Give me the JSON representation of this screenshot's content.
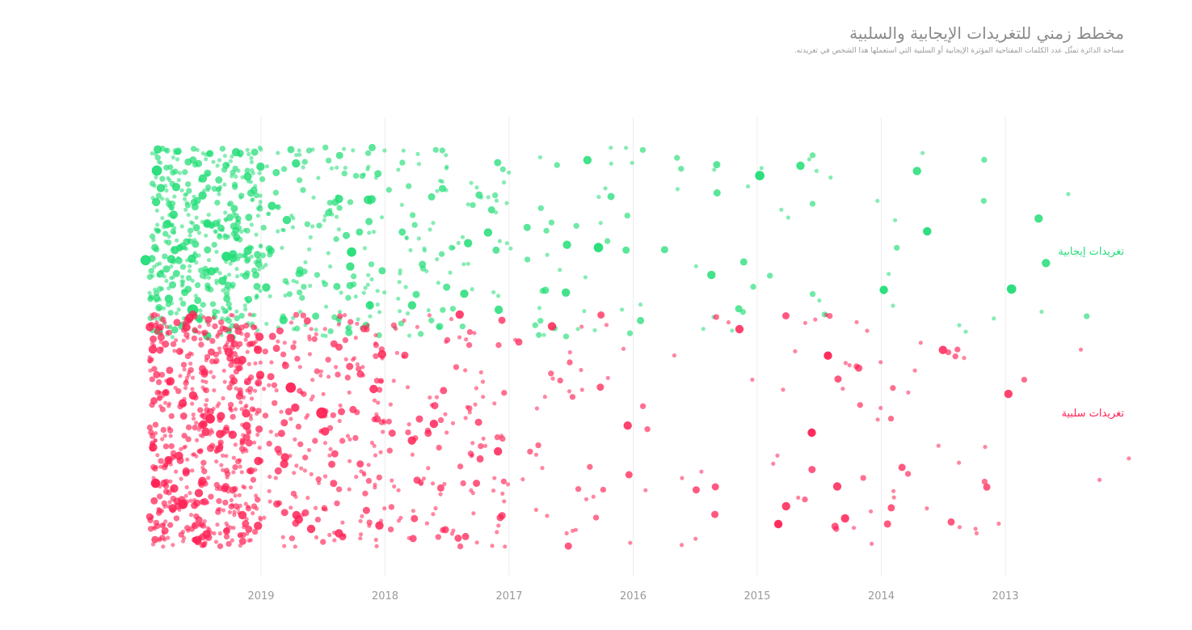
{
  "header": {
    "title": "مخطط زمني للتغريدات الإيجابية والسلبية",
    "subtitle": "مساحة الدائرة تمثّل عدد الكلمات المفتاحية المؤثرة الإيجابية أو السلبية التي استعملها هذا الشخص في تغريدته."
  },
  "chart_data": {
    "type": "scatter",
    "title": "مخطط زمني للتغريدات الإيجابية والسلبية",
    "subtitle": "مساحة الدائرة تمثّل عدد الكلمات المفتاحية المؤثرة الإيجابية أو السلبية التي استعملها هذا الشخص في تغريدته.",
    "x_axis": {
      "direction": "reversed (newest on the left)",
      "range": [
        2012.0,
        2019.9
      ],
      "ticks": [
        "2019",
        "2018",
        "2017",
        "2016",
        "2015",
        "2014",
        "2013"
      ],
      "grid": true
    },
    "series": [
      {
        "name": "تغريدات إيجابية",
        "color": "#22dd77",
        "density": [
          {
            "range": [
              2019.0,
              2019.9
            ],
            "approx_count": 430
          },
          {
            "range": [
              2018.0,
              2018.99
            ],
            "approx_count": 160
          },
          {
            "range": [
              2017.0,
              2017.99
            ],
            "approx_count": 90
          },
          {
            "range": [
              2016.0,
              2016.99
            ],
            "approx_count": 40
          },
          {
            "range": [
              2015.0,
              2015.99
            ],
            "approx_count": 20
          },
          {
            "range": [
              2013.0,
              2014.99
            ],
            "approx_count": 25
          },
          {
            "range": [
              2012.0,
              2012.99
            ],
            "approx_count": 5
          }
        ],
        "largest_points": [
          {
            "x": 2019.93,
            "weight": 6
          },
          {
            "x": 2019.84,
            "weight": 6
          },
          {
            "x": 2019.55,
            "weight": 7
          },
          {
            "x": 2019.28,
            "weight": 5
          },
          {
            "x": 2018.27,
            "weight": 5
          },
          {
            "x": 2016.28,
            "weight": 5
          },
          {
            "x": 2014.98,
            "weight": 5
          },
          {
            "x": 2013.98,
            "weight": 4
          },
          {
            "x": 2013.63,
            "weight": 4
          },
          {
            "x": 2012.95,
            "weight": 5
          }
        ]
      },
      {
        "name": "تغريدات سلبية",
        "color": "#ff2255",
        "density": [
          {
            "range": [
              2019.0,
              2019.9
            ],
            "approx_count": 560
          },
          {
            "range": [
              2018.0,
              2018.99
            ],
            "approx_count": 210
          },
          {
            "range": [
              2017.0,
              2017.99
            ],
            "approx_count": 120
          },
          {
            "range": [
              2016.0,
              2016.99
            ],
            "approx_count": 40
          },
          {
            "range": [
              2015.0,
              2015.99
            ],
            "approx_count": 15
          },
          {
            "range": [
              2013.0,
              2014.99
            ],
            "approx_count": 60
          },
          {
            "range": [
              2012.0,
              2012.99
            ],
            "approx_count": 5
          }
        ],
        "largest_points": [
          {
            "x": 2019.85,
            "weight": 5
          },
          {
            "x": 2019.63,
            "weight": 5
          },
          {
            "x": 2019.41,
            "weight": 5
          },
          {
            "x": 2018.76,
            "weight": 6
          },
          {
            "x": 2018.51,
            "weight": 7
          },
          {
            "x": 2014.83,
            "weight": 4
          },
          {
            "x": 2014.56,
            "weight": 4
          },
          {
            "x": 2014.43,
            "weight": 4
          }
        ]
      }
    ],
    "legend": "labels at right next to each band"
  }
}
